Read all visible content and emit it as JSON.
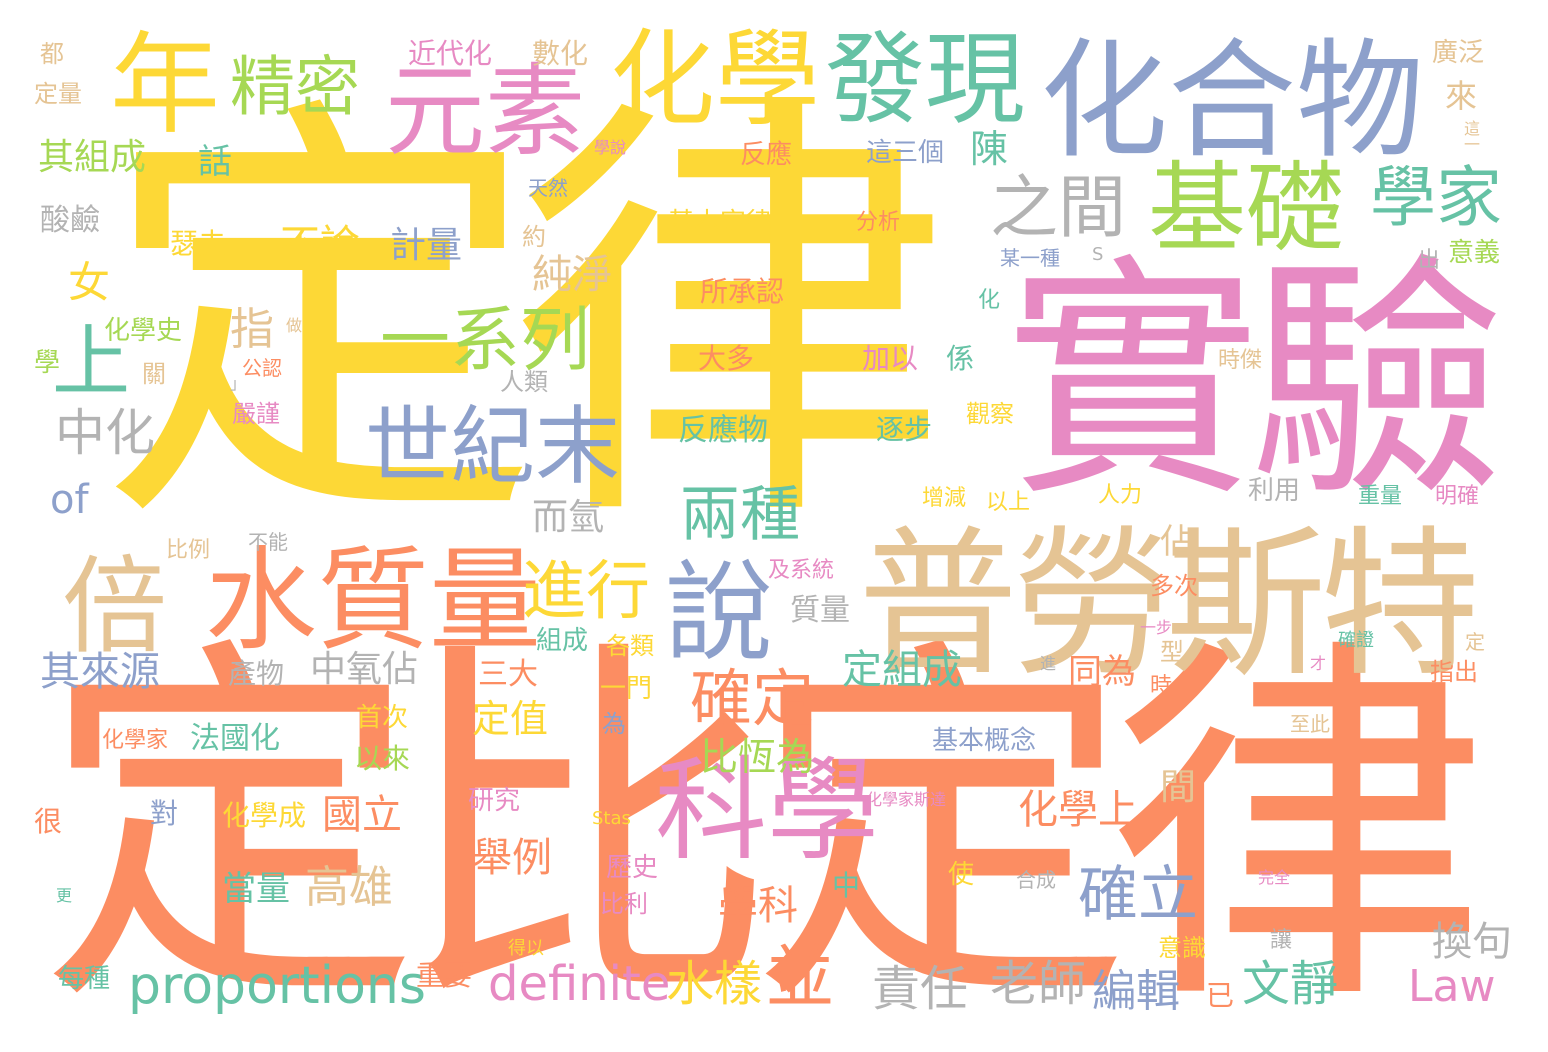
{
  "colors": {
    "yellow": "#fdd836",
    "orange": "#fc8d62",
    "pink": "#e78ac3",
    "blue": "#8da0cb",
    "green": "#a6d854",
    "teal": "#66c2a5",
    "tan": "#e5c494",
    "gray": "#b3b3b3"
  },
  "words": [
    {
      "text": "定律",
      "color": "yellow"
    },
    {
      "text": "定比定律",
      "color": "orange"
    },
    {
      "text": "實驗",
      "color": "pink"
    },
    {
      "text": "普勞斯特",
      "color": "tan"
    },
    {
      "text": "化合物",
      "color": "blue"
    },
    {
      "text": "化學",
      "color": "yellow"
    },
    {
      "text": "元素",
      "color": "pink"
    },
    {
      "text": "發現",
      "color": "teal"
    },
    {
      "text": "年",
      "color": "yellow"
    },
    {
      "text": "精密",
      "color": "green"
    },
    {
      "text": "基礎",
      "color": "green"
    },
    {
      "text": "之間",
      "color": "gray"
    },
    {
      "text": "學家",
      "color": "teal"
    },
    {
      "text": "一系列",
      "color": "green"
    },
    {
      "text": "世紀末",
      "color": "blue"
    },
    {
      "text": "水質量",
      "color": "orange"
    },
    {
      "text": "倍",
      "color": "tan"
    },
    {
      "text": "科學",
      "color": "pink"
    },
    {
      "text": "說",
      "color": "blue"
    },
    {
      "text": "進行",
      "color": "yellow"
    },
    {
      "text": "確定",
      "color": "orange"
    },
    {
      "text": "兩種",
      "color": "teal"
    },
    {
      "text": "確立",
      "color": "blue"
    },
    {
      "text": "上",
      "color": "teal"
    },
    {
      "text": "女",
      "color": "yellow"
    },
    {
      "text": "不論",
      "color": "yellow"
    },
    {
      "text": "計量",
      "color": "blue"
    },
    {
      "text": "純淨",
      "color": "tan"
    },
    {
      "text": "指",
      "color": "tan"
    },
    {
      "text": "中化",
      "color": "gray"
    },
    {
      "text": "of",
      "color": "blue"
    },
    {
      "text": "proportions",
      "color": "teal"
    },
    {
      "text": "definite",
      "color": "pink"
    },
    {
      "text": "水樣",
      "color": "yellow"
    },
    {
      "text": "並",
      "color": "orange"
    },
    {
      "text": "責任",
      "color": "gray"
    },
    {
      "text": "老師",
      "color": "gray"
    },
    {
      "text": "編輯",
      "color": "blue"
    },
    {
      "text": "文靜",
      "color": "teal"
    },
    {
      "text": "Law",
      "color": "pink"
    },
    {
      "text": "換句",
      "color": "gray"
    },
    {
      "text": "其組成",
      "color": "green"
    },
    {
      "text": "其來源",
      "color": "blue"
    },
    {
      "text": "中氧佔",
      "color": "gray"
    },
    {
      "text": "定組成",
      "color": "teal"
    },
    {
      "text": "比恆為",
      "color": "green"
    },
    {
      "text": "化學上",
      "color": "orange"
    },
    {
      "text": "國立",
      "color": "orange"
    },
    {
      "text": "高雄",
      "color": "tan"
    },
    {
      "text": "學科",
      "color": "orange"
    },
    {
      "text": "舉例",
      "color": "orange"
    },
    {
      "text": "定值",
      "color": "yellow"
    },
    {
      "text": "同為",
      "color": "orange"
    },
    {
      "text": "佔",
      "color": "tan"
    },
    {
      "text": "間",
      "color": "tan"
    },
    {
      "text": "陳",
      "color": "teal"
    },
    {
      "text": "話",
      "color": "teal"
    },
    {
      "text": "而氫",
      "color": "gray"
    },
    {
      "text": "當量",
      "color": "teal"
    },
    {
      "text": "酸鹼",
      "color": "gray"
    },
    {
      "text": "瑟夫",
      "color": "yellow"
    },
    {
      "text": "近代化",
      "color": "pink"
    },
    {
      "text": "數化",
      "color": "tan"
    },
    {
      "text": "廣泛",
      "color": "tan"
    },
    {
      "text": "都",
      "color": "tan"
    },
    {
      "text": "定量",
      "color": "tan"
    },
    {
      "text": "反應",
      "color": "orange"
    },
    {
      "text": "這三個",
      "color": "blue"
    },
    {
      "text": "來",
      "color": "tan"
    },
    {
      "text": "這一",
      "color": "tan"
    },
    {
      "text": "學說",
      "color": "pink"
    },
    {
      "text": "天然",
      "color": "blue"
    },
    {
      "text": "基本定律",
      "color": "yellow"
    },
    {
      "text": "分析",
      "color": "orange"
    },
    {
      "text": "約",
      "color": "tan"
    },
    {
      "text": "出",
      "color": "gray"
    },
    {
      "text": "意義",
      "color": "green"
    },
    {
      "text": "某一種",
      "color": "blue"
    },
    {
      "text": "S",
      "color": "gray"
    },
    {
      "text": "所承認",
      "color": "orange"
    },
    {
      "text": "化",
      "color": "teal"
    },
    {
      "text": "化學史",
      "color": "green"
    },
    {
      "text": "做",
      "color": "tan"
    },
    {
      "text": "學",
      "color": "green"
    },
    {
      "text": "公認",
      "color": "orange"
    },
    {
      "text": "」",
      "color": "gray"
    },
    {
      "text": "關",
      "color": "tan"
    },
    {
      "text": "人類",
      "color": "gray"
    },
    {
      "text": "大多",
      "color": "orange"
    },
    {
      "text": "加以",
      "color": "pink"
    },
    {
      "text": "係",
      "color": "teal"
    },
    {
      "text": "時傑",
      "color": "tan"
    },
    {
      "text": "嚴謹",
      "color": "pink"
    },
    {
      "text": "觀察",
      "color": "yellow"
    },
    {
      "text": "反應物",
      "color": "teal"
    },
    {
      "text": "逐步",
      "color": "teal"
    },
    {
      "text": "人力",
      "color": "yellow"
    },
    {
      "text": "利用",
      "color": "gray"
    },
    {
      "text": "重量",
      "color": "teal"
    },
    {
      "text": "明確",
      "color": "pink"
    },
    {
      "text": "增減",
      "color": "yellow"
    },
    {
      "text": "以上",
      "color": "yellow"
    },
    {
      "text": "比例",
      "color": "tan"
    },
    {
      "text": "不能",
      "color": "gray"
    },
    {
      "text": "及系統",
      "color": "pink"
    },
    {
      "text": "多次",
      "color": "orange"
    },
    {
      "text": "質量",
      "color": "gray"
    },
    {
      "text": "一步",
      "color": "pink"
    },
    {
      "text": "確證",
      "color": "teal"
    },
    {
      "text": "定",
      "color": "tan"
    },
    {
      "text": "組成",
      "color": "teal"
    },
    {
      "text": "各類",
      "color": "yellow"
    },
    {
      "text": "型",
      "color": "tan"
    },
    {
      "text": "產物",
      "color": "gray"
    },
    {
      "text": "三大",
      "color": "orange"
    },
    {
      "text": "一門",
      "color": "yellow"
    },
    {
      "text": "進",
      "color": "gray"
    },
    {
      "text": "才",
      "color": "pink"
    },
    {
      "text": "指出",
      "color": "orange"
    },
    {
      "text": "時",
      "color": "orange"
    },
    {
      "text": "化學家",
      "color": "orange"
    },
    {
      "text": "法國化",
      "color": "teal"
    },
    {
      "text": "首次",
      "color": "yellow"
    },
    {
      "text": "為",
      "color": "blue"
    },
    {
      "text": "基本概念",
      "color": "blue"
    },
    {
      "text": "至此",
      "color": "tan"
    },
    {
      "text": "以來",
      "color": "green"
    },
    {
      "text": "研究",
      "color": "pink"
    },
    {
      "text": "化學家斯達",
      "color": "pink"
    },
    {
      "text": "很",
      "color": "orange"
    },
    {
      "text": "對",
      "color": "blue"
    },
    {
      "text": "化學成",
      "color": "yellow"
    },
    {
      "text": "Stas",
      "color": "yellow"
    },
    {
      "text": "歷史",
      "color": "pink"
    },
    {
      "text": "中",
      "color": "teal"
    },
    {
      "text": "使",
      "color": "yellow"
    },
    {
      "text": "合成",
      "color": "gray"
    },
    {
      "text": "完全",
      "color": "pink"
    },
    {
      "text": "比利",
      "color": "pink"
    },
    {
      "text": "更",
      "color": "teal"
    },
    {
      "text": "得以",
      "color": "yellow"
    },
    {
      "text": "讓",
      "color": "gray"
    },
    {
      "text": "意識",
      "color": "yellow"
    },
    {
      "text": "每種",
      "color": "teal"
    },
    {
      "text": "重要",
      "color": "orange"
    },
    {
      "text": "已",
      "color": "orange"
    }
  ]
}
